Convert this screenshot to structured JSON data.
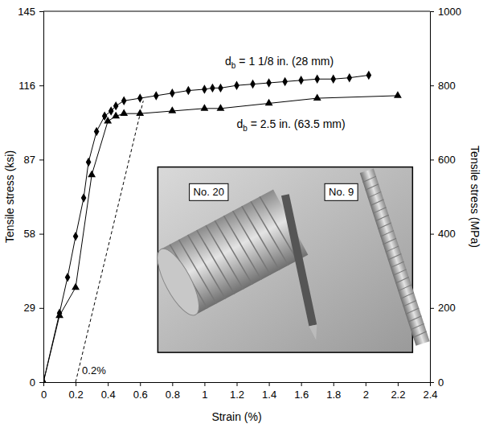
{
  "chart_data": {
    "type": "line",
    "x_label": "Strain (%)",
    "y_label": "Tensile stress (ksi)",
    "y2_label": "Tensile stress (MPa)",
    "xlim": [
      0,
      2.4
    ],
    "xticks": [
      0,
      0.2,
      0.4,
      0.6,
      0.8,
      1,
      1.2,
      1.4,
      1.6,
      1.8,
      2,
      2.2,
      2.4
    ],
    "ylim": [
      0,
      145
    ],
    "yticks": [
      0,
      29,
      58,
      87,
      116,
      145
    ],
    "y2lim": [
      0,
      1000
    ],
    "y2ticks": [
      0,
      200,
      400,
      600,
      800,
      1000
    ],
    "grid": false,
    "series": [
      {
        "name": "db = 1 1/8 in. (28 mm)",
        "color": "#000000",
        "marker": "diamond",
        "line_style": "solid",
        "x": [
          0,
          0.1,
          0.15,
          0.2,
          0.25,
          0.28,
          0.33,
          0.38,
          0.42,
          0.45,
          0.5,
          0.6,
          0.7,
          0.8,
          0.9,
          1.0,
          1.05,
          1.1,
          1.2,
          1.3,
          1.4,
          1.5,
          1.6,
          1.7,
          1.8,
          1.9,
          2.02
        ],
        "values": [
          0,
          27,
          41,
          57,
          72,
          86,
          98,
          104,
          106,
          108,
          110,
          111,
          112,
          113,
          114,
          114.5,
          115,
          115,
          116,
          116.5,
          117,
          117.5,
          118,
          118.5,
          118.5,
          119,
          120
        ]
      },
      {
        "name": "db = 2.5 in. (63.5 mm)",
        "color": "#000000",
        "marker": "triangle",
        "line_style": "solid",
        "x": [
          0,
          0.1,
          0.2,
          0.3,
          0.4,
          0.45,
          0.5,
          0.6,
          0.8,
          1.0,
          1.1,
          1.4,
          1.7,
          2.2
        ],
        "values": [
          0,
          26,
          37,
          81,
          102,
          104,
          105,
          105,
          106,
          107,
          107,
          109,
          111,
          112
        ]
      }
    ],
    "offset_line": {
      "x": [
        0.2,
        0.62
      ],
      "y": [
        0,
        110
      ],
      "line_style": "dashed"
    },
    "annotations": [
      {
        "text": "0.2%"
      },
      {
        "text": "No. 20"
      },
      {
        "text": "No. 9"
      }
    ]
  }
}
